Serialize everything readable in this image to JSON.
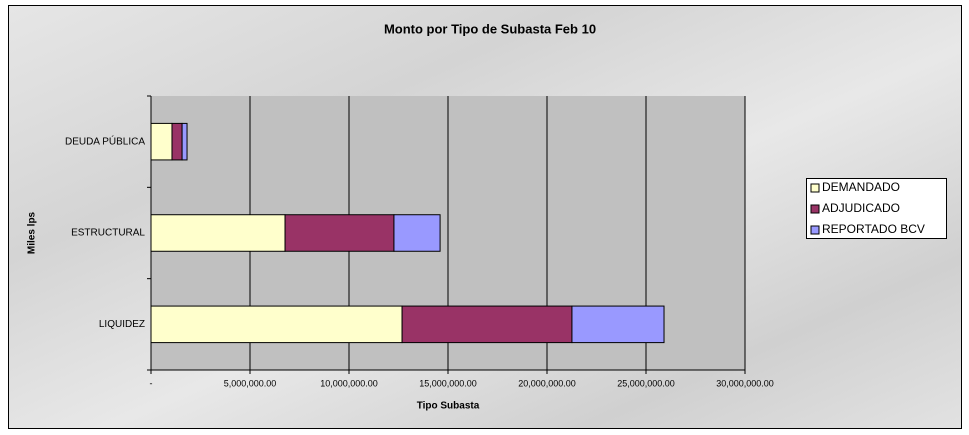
{
  "chart_data": {
    "type": "stacked_barh",
    "title": "Monto por Tipo de Subasta Feb  10",
    "x_label": "Tipo Subasta",
    "y_label": "Miles lps",
    "categories": [
      "LIQUIDEZ",
      "ESTRUCTURAL",
      "DEUDA PÚBLICA"
    ],
    "series": [
      {
        "name": "DEMANDADO",
        "color": "#ffffcc",
        "values": [
          12680000,
          6770000,
          1060000
        ]
      },
      {
        "name": "ADJUDICADO",
        "color": "#993366",
        "values": [
          8580000,
          5500000,
          510000
        ]
      },
      {
        "name": "REPORTADO BCV",
        "color": "#9999ff",
        "values": [
          4650000,
          2330000,
          250000
        ]
      }
    ],
    "xlim": [
      0,
      30000000
    ],
    "xticks": [
      {
        "value": 0,
        "label": "-"
      },
      {
        "value": 5000000,
        "label": "5,000,000.00"
      },
      {
        "value": 10000000,
        "label": "10,000,000.00"
      },
      {
        "value": 15000000,
        "label": "15,000,000.00"
      },
      {
        "value": 20000000,
        "label": "20,000,000.00"
      },
      {
        "value": 25000000,
        "label": "25,000,000.00"
      },
      {
        "value": 30000000,
        "label": "30,000,000.00"
      }
    ],
    "grid": true,
    "legend": "right"
  }
}
